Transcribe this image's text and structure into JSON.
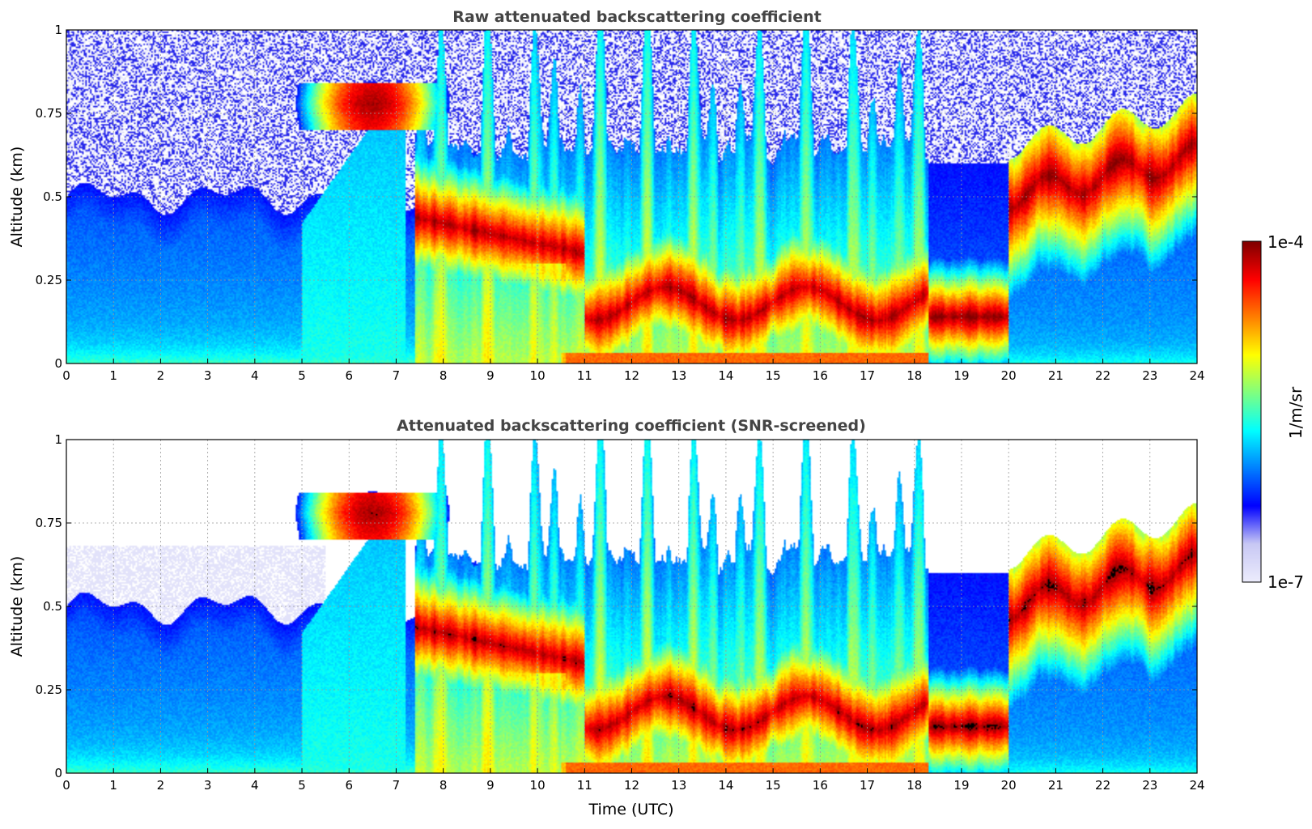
{
  "chart_data": [
    {
      "type": "heatmap",
      "id": "raw",
      "title": "Raw attenuated backscattering coefficient",
      "xlabel": "",
      "ylabel": "Altitude (km)",
      "xlim": [
        0,
        24
      ],
      "ylim": [
        0,
        1
      ],
      "xticks": [
        0,
        1,
        2,
        3,
        4,
        5,
        6,
        7,
        8,
        9,
        10,
        11,
        12,
        13,
        14,
        15,
        16,
        17,
        18,
        19,
        20,
        21,
        22,
        23,
        24
      ],
      "yticks": [
        0,
        0.25,
        0.5,
        0.75,
        1
      ],
      "ytick_labels": [
        "0",
        "0.25",
        "0.5",
        "0.75",
        "1"
      ],
      "grid": true,
      "snr_screened": false
    },
    {
      "type": "heatmap",
      "id": "screened",
      "title": "Attenuated backscattering coefficient (SNR-screened)",
      "xlabel": "Time (UTC)",
      "ylabel": "Altitude (km)",
      "xlim": [
        0,
        24
      ],
      "ylim": [
        0,
        1
      ],
      "xticks": [
        0,
        1,
        2,
        3,
        4,
        5,
        6,
        7,
        8,
        9,
        10,
        11,
        12,
        13,
        14,
        15,
        16,
        17,
        18,
        19,
        20,
        21,
        22,
        23,
        24
      ],
      "yticks": [
        0,
        0.25,
        0.5,
        0.75,
        1
      ],
      "ytick_labels": [
        "0",
        "0.25",
        "0.5",
        "0.75",
        "1"
      ],
      "grid": true,
      "snr_screened": true
    }
  ],
  "colorbar": {
    "label": "1/m/sr",
    "min_label": "1e-7",
    "max_label": "1e-4",
    "log_min": -7,
    "log_max": -4,
    "colormap": [
      "#ececfc",
      "#c8c8f4",
      "#0000ff",
      "#0080ff",
      "#00ffff",
      "#80ff80",
      "#ffff00",
      "#ff8000",
      "#ff0000",
      "#800000"
    ]
  }
}
